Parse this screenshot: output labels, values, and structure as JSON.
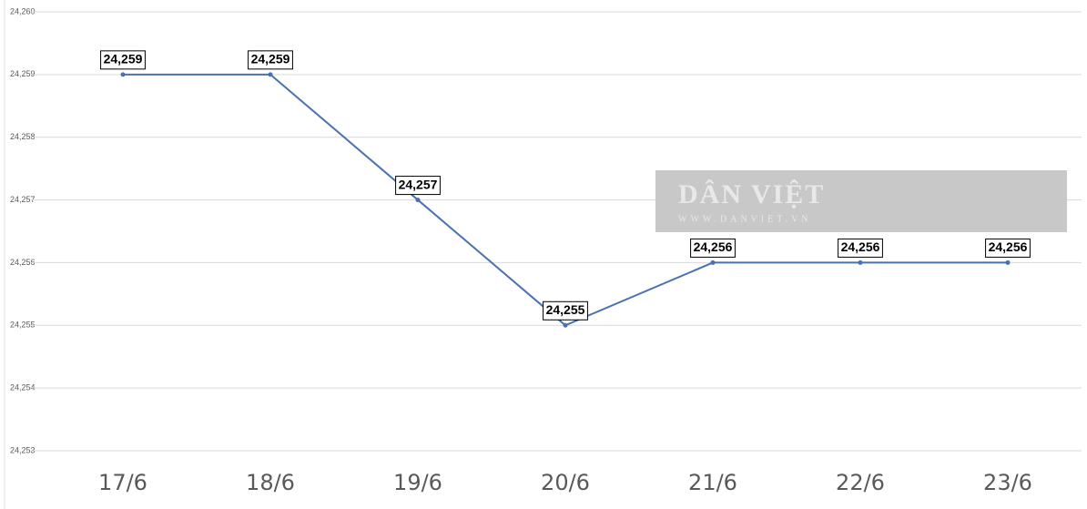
{
  "chart_data": {
    "type": "line",
    "categories": [
      "17/6",
      "18/6",
      "19/6",
      "20/6",
      "21/6",
      "22/6",
      "23/6"
    ],
    "series": [
      {
        "color": "#4a72b0",
        "values": [
          24259,
          24259,
          24257,
          24255,
          24256,
          24256,
          24256
        ],
        "value_labels": [
          "24,259",
          "24,259",
          "24,257",
          "24,255",
          "24,256",
          "24,256",
          "24,256"
        ]
      }
    ],
    "ylim": [
      24253,
      24260
    ],
    "yticks": [
      {
        "value": 24253,
        "label": "24,253"
      },
      {
        "value": 24254,
        "label": "24,254"
      },
      {
        "value": 24255,
        "label": "24,255"
      },
      {
        "value": 24256,
        "label": "24,256"
      },
      {
        "value": 24257,
        "label": "24,257"
      },
      {
        "value": 24258,
        "label": "24,258"
      },
      {
        "value": 24259,
        "label": "24,259"
      },
      {
        "value": 24260,
        "label": "24,260"
      }
    ],
    "grid": true,
    "watermark": {
      "title": "DÂN VIỆT",
      "url": "WWW.DANVIET.VN"
    }
  }
}
